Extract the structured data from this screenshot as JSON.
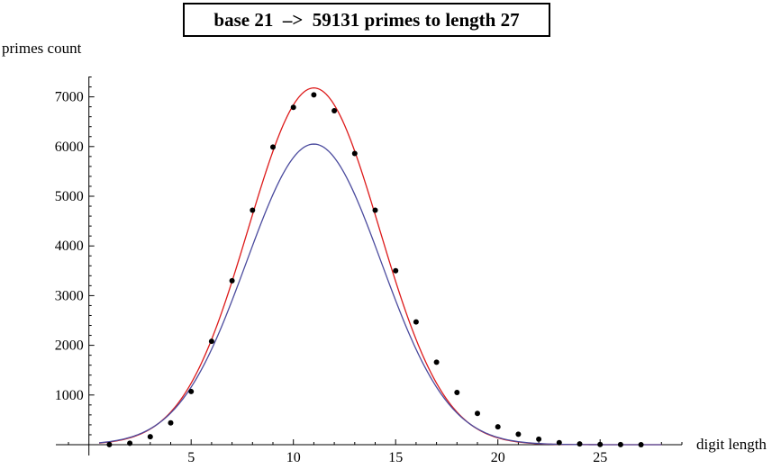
{
  "chart_data": {
    "type": "scatter",
    "title": "base 21  –>  59131 primes to length 27",
    "xlabel": "digit length",
    "ylabel": "primes count",
    "xlim": [
      -1,
      29
    ],
    "ylim": [
      0,
      7500
    ],
    "x_ticks": [
      5,
      10,
      15,
      20,
      25
    ],
    "y_ticks": [
      1000,
      2000,
      3000,
      4000,
      5000,
      6000,
      7000
    ],
    "grid": false,
    "series": [
      {
        "kind": "points",
        "color": "#000000",
        "x": [
          1,
          2,
          3,
          4,
          5,
          6,
          7,
          8,
          9,
          10,
          11,
          12,
          13,
          14,
          15,
          16,
          17,
          18,
          19,
          20,
          21,
          22,
          23,
          24,
          25,
          26,
          27
        ],
        "y": [
          2,
          30,
          160,
          440,
          1070,
          2080,
          3300,
          4720,
          5990,
          6790,
          7040,
          6720,
          5860,
          4720,
          3500,
          2470,
          1660,
          1050,
          630,
          360,
          210,
          110,
          40,
          15,
          5,
          2,
          0
        ]
      },
      {
        "kind": "curve",
        "color": "#dd1a1a",
        "peak_x": 11,
        "peak_y": 7180,
        "sigma": 3.2
      },
      {
        "kind": "curve",
        "color": "#4b4b9e",
        "peak_x": 11,
        "peak_y": 6050,
        "sigma": 3.3
      }
    ]
  }
}
